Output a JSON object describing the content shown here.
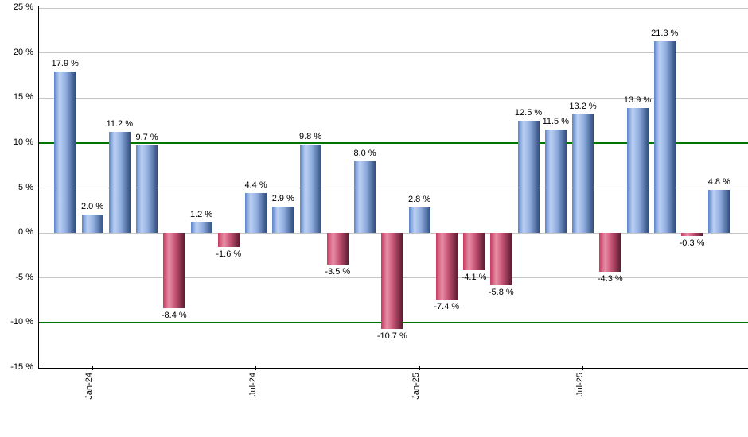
{
  "chart_data": {
    "type": "bar",
    "title": "",
    "unit": "%",
    "values": [
      17.9,
      2.0,
      11.2,
      9.7,
      -8.4,
      1.2,
      -1.6,
      4.4,
      2.9,
      9.8,
      -3.5,
      8.0,
      -10.7,
      2.8,
      -7.4,
      -4.1,
      -5.8,
      12.5,
      11.5,
      13.2,
      -4.3,
      13.9,
      21.3,
      -0.3,
      4.8
    ],
    "bar_labels": [
      "17.9 %",
      "2.0 %",
      "11.2 %",
      "9.7 %",
      "-8.4 %",
      "1.2 %",
      "-1.6 %",
      "4.4 %",
      "2.9 %",
      "9.8 %",
      "-3.5 %",
      "8.0 %",
      "-10.7 %",
      "2.8 %",
      "-7.4 %",
      "-4.1 %",
      "-5.8 %",
      "12.5 %",
      "11.5 %",
      "13.2 %",
      "-4.3 %",
      "13.9 %",
      "21.3 %",
      "-0.3 %",
      "4.8 %"
    ],
    "x_ticks": [
      {
        "index": 1,
        "label": "Jan-24"
      },
      {
        "index": 7,
        "label": "Jul-24"
      },
      {
        "index": 13,
        "label": "Jan-25"
      },
      {
        "index": 19,
        "label": "Jul-25"
      }
    ],
    "y_ticks": [
      {
        "value": 25,
        "label": "25 %"
      },
      {
        "value": 20,
        "label": "20 %"
      },
      {
        "value": 15,
        "label": "15 %"
      },
      {
        "value": 10,
        "label": "10 %"
      },
      {
        "value": 5,
        "label": "5 %"
      },
      {
        "value": 0,
        "label": "0 %"
      },
      {
        "value": -5,
        "label": "-5 %"
      },
      {
        "value": -10,
        "label": "-10 %"
      },
      {
        "value": -15,
        "label": "-15 %"
      }
    ],
    "ylim": [
      -15,
      25
    ],
    "grid": true,
    "legend_position": "none",
    "reference_lines": {
      "values": [
        10,
        -10
      ],
      "color": "#007500"
    },
    "colors": {
      "background": "#ffffff",
      "gridline": "#c6c6c6",
      "axis": "#000000",
      "positive_edge_left": "#5d86c9",
      "positive_light": "#bdd1f3",
      "positive_mid": "#8fadde",
      "positive_dark": "#2f4d7d",
      "negative_edge_left": "#c63c62",
      "negative_light": "#e78fa6",
      "negative_mid": "#c85577",
      "negative_dark": "#5e1c31"
    }
  }
}
